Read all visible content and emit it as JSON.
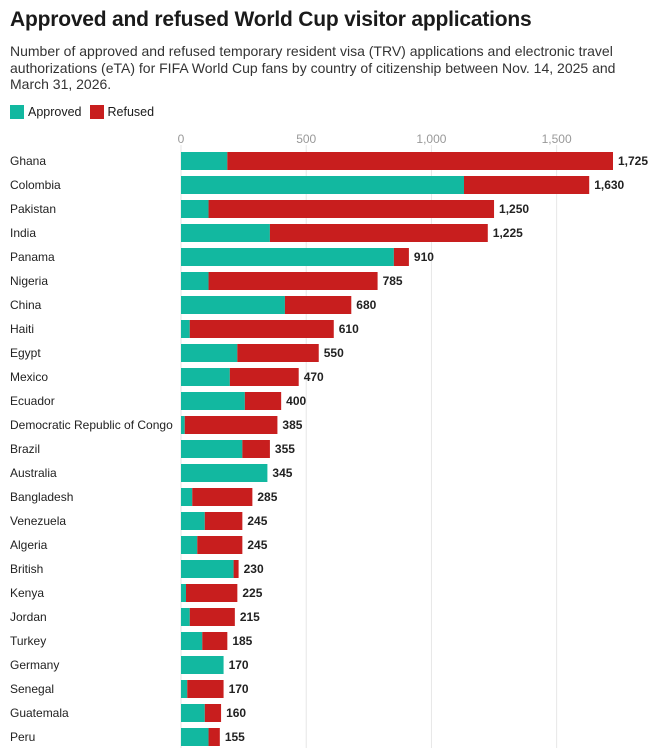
{
  "title": "Approved and refused World Cup visitor applications",
  "subtitle": "Number of approved and refused temporary resident visa (TRV) applications and electronic travel authorizations (eTA) for FIFA World Cup fans by country of citizenship between Nov. 14, 2025 and March 31, 2026.",
  "colors": {
    "approved": "#12b8a0",
    "refused": "#c81e1e",
    "grid": "#e6e6e6"
  },
  "chart_data": {
    "type": "bar",
    "orientation": "horizontal",
    "stacked": true,
    "title": "Approved and refused World Cup visitor applications",
    "xlim": [
      0,
      1725
    ],
    "x_ticks": [
      0,
      500,
      1000,
      1500
    ],
    "x_tick_labels": [
      "0",
      "500",
      "1,000",
      "1,500"
    ],
    "grid": true,
    "legend_position": "top-left",
    "categories": [
      "Ghana",
      "Colombia",
      "Pakistan",
      "India",
      "Panama",
      "Nigeria",
      "China",
      "Haiti",
      "Egypt",
      "Mexico",
      "Ecuador",
      "Democratic Republic of Congo",
      "Brazil",
      "Australia",
      "Bangladesh",
      "Venezuela",
      "Algeria",
      "British",
      "Kenya",
      "Jordan",
      "Turkey",
      "Germany",
      "Senegal",
      "Guatemala",
      "Peru"
    ],
    "series": [
      {
        "name": "Approved",
        "values": [
          185,
          1130,
          110,
          355,
          850,
          110,
          415,
          35,
          225,
          195,
          255,
          15,
          245,
          345,
          45,
          95,
          65,
          210,
          20,
          35,
          85,
          170,
          25,
          95,
          110
        ]
      },
      {
        "name": "Refused",
        "values": [
          1540,
          500,
          1140,
          870,
          60,
          675,
          265,
          575,
          325,
          275,
          145,
          370,
          110,
          0,
          240,
          150,
          180,
          20,
          205,
          180,
          100,
          0,
          145,
          65,
          45
        ]
      }
    ],
    "total_labels": [
      "1,725",
      "1,630",
      "1,250",
      "1,225",
      "910",
      "785",
      "680",
      "610",
      "550",
      "470",
      "400",
      "385",
      "355",
      "345",
      "285",
      "245",
      "245",
      "230",
      "225",
      "215",
      "185",
      "170",
      "170",
      "160",
      "155"
    ]
  }
}
